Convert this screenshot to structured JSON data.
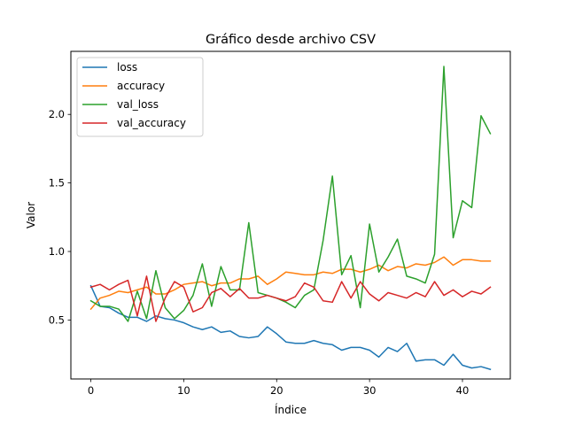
{
  "chart_data": {
    "type": "line",
    "title": "Gráfico desde archivo CSV",
    "xlabel": "Índice",
    "ylabel": "Valor",
    "xlim": [
      -2.15,
      45.15
    ],
    "ylim": [
      0.07,
      2.46
    ],
    "xticks": [
      0,
      10,
      20,
      30,
      40
    ],
    "yticks": [
      0.5,
      1.0,
      1.5,
      2.0
    ],
    "ytick_labels": [
      "0.5",
      "1.0",
      "1.5",
      "2.0"
    ],
    "legend_position": "upper left",
    "x": [
      0,
      1,
      2,
      3,
      4,
      5,
      6,
      7,
      8,
      9,
      10,
      11,
      12,
      13,
      14,
      15,
      16,
      17,
      18,
      19,
      20,
      21,
      22,
      23,
      24,
      25,
      26,
      27,
      28,
      29,
      30,
      31,
      32,
      33,
      34,
      35,
      36,
      37,
      38,
      39,
      40,
      41,
      42,
      43
    ],
    "series": [
      {
        "name": "loss",
        "color": "#1f77b4",
        "values": [
          0.75,
          0.6,
          0.59,
          0.55,
          0.52,
          0.52,
          0.49,
          0.53,
          0.51,
          0.5,
          0.48,
          0.45,
          0.43,
          0.45,
          0.41,
          0.42,
          0.38,
          0.37,
          0.38,
          0.45,
          0.4,
          0.34,
          0.33,
          0.33,
          0.35,
          0.33,
          0.32,
          0.28,
          0.3,
          0.3,
          0.28,
          0.23,
          0.3,
          0.27,
          0.33,
          0.2,
          0.21,
          0.21,
          0.17,
          0.25,
          0.17,
          0.15,
          0.16,
          0.14
        ]
      },
      {
        "name": "accuracy",
        "color": "#ff7f0e",
        "values": [
          0.58,
          0.66,
          0.68,
          0.71,
          0.7,
          0.72,
          0.74,
          0.69,
          0.69,
          0.72,
          0.76,
          0.77,
          0.78,
          0.75,
          0.77,
          0.77,
          0.8,
          0.8,
          0.82,
          0.76,
          0.8,
          0.85,
          0.84,
          0.83,
          0.83,
          0.85,
          0.84,
          0.87,
          0.87,
          0.85,
          0.87,
          0.9,
          0.86,
          0.89,
          0.88,
          0.91,
          0.9,
          0.92,
          0.96,
          0.9,
          0.94,
          0.94,
          0.93,
          0.93
        ]
      },
      {
        "name": "val_loss",
        "color": "#2ca02c",
        "values": [
          0.64,
          0.6,
          0.6,
          0.58,
          0.49,
          0.71,
          0.51,
          0.86,
          0.59,
          0.51,
          0.57,
          0.68,
          0.91,
          0.6,
          0.89,
          0.72,
          0.72,
          1.21,
          0.7,
          0.68,
          0.66,
          0.63,
          0.59,
          0.68,
          0.72,
          1.08,
          1.55,
          0.83,
          0.97,
          0.59,
          1.2,
          0.85,
          0.96,
          1.09,
          0.82,
          0.8,
          0.77,
          0.98,
          2.35,
          1.1,
          1.37,
          1.32,
          1.99,
          1.86
        ]
      },
      {
        "name": "val_accuracy",
        "color": "#d62728",
        "values": [
          0.74,
          0.76,
          0.72,
          0.76,
          0.79,
          0.53,
          0.82,
          0.49,
          0.66,
          0.78,
          0.74,
          0.56,
          0.59,
          0.7,
          0.73,
          0.67,
          0.73,
          0.66,
          0.66,
          0.68,
          0.66,
          0.64,
          0.67,
          0.77,
          0.74,
          0.64,
          0.63,
          0.78,
          0.66,
          0.78,
          0.69,
          0.64,
          0.7,
          0.68,
          0.66,
          0.7,
          0.67,
          0.78,
          0.68,
          0.72,
          0.67,
          0.71,
          0.69,
          0.74
        ]
      }
    ]
  }
}
